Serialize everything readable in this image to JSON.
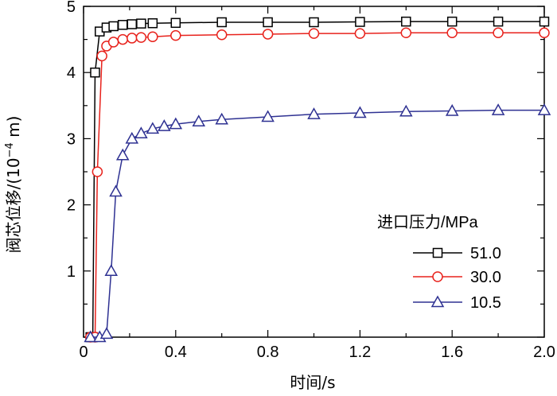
{
  "chart_data": {
    "type": "line",
    "xlabel": "时间/s",
    "ylabel_main": "阀芯位移/(10",
    "ylabel_exp": "−4",
    "ylabel_tail": " m)",
    "xlim": [
      0,
      2.0
    ],
    "ylim": [
      0,
      5
    ],
    "x_ticks": [
      "0",
      "0.4",
      "0.8",
      "1.2",
      "1.6",
      "2.0"
    ],
    "y_ticks": [
      "1",
      "2",
      "3",
      "4",
      "5"
    ],
    "grid": false,
    "legend_title": "进口压力/MPa",
    "legend_position": "right",
    "series": [
      {
        "name": "51.0",
        "color": "#000000",
        "marker": "square",
        "x": [
          0.03,
          0.04,
          0.05,
          0.07,
          0.1,
          0.13,
          0.17,
          0.21,
          0.25,
          0.3,
          0.4,
          0.6,
          0.8,
          1.0,
          1.2,
          1.4,
          1.6,
          1.8,
          2.0
        ],
        "y": [
          0.0,
          0.0,
          4.0,
          4.62,
          4.68,
          4.7,
          4.72,
          4.73,
          4.74,
          4.745,
          4.75,
          4.76,
          4.76,
          4.76,
          4.765,
          4.77,
          4.77,
          4.77,
          4.77
        ]
      },
      {
        "name": "30.0",
        "color": "#e8221c",
        "marker": "circle",
        "x": [
          0.03,
          0.05,
          0.06,
          0.08,
          0.1,
          0.13,
          0.17,
          0.21,
          0.25,
          0.3,
          0.4,
          0.6,
          0.8,
          1.0,
          1.2,
          1.4,
          1.6,
          1.8,
          2.0
        ],
        "y": [
          0.0,
          0.0,
          2.5,
          4.25,
          4.4,
          4.46,
          4.5,
          4.52,
          4.53,
          4.54,
          4.56,
          4.57,
          4.58,
          4.59,
          4.59,
          4.6,
          4.6,
          4.6,
          4.6
        ]
      },
      {
        "name": "10.5",
        "color": "#2e3192",
        "marker": "triangle",
        "x": [
          0.03,
          0.07,
          0.1,
          0.12,
          0.14,
          0.17,
          0.21,
          0.25,
          0.3,
          0.35,
          0.4,
          0.5,
          0.6,
          0.8,
          1.0,
          1.2,
          1.4,
          1.6,
          1.8,
          2.0
        ],
        "y": [
          0.0,
          0.0,
          0.05,
          1.0,
          2.2,
          2.75,
          3.0,
          3.08,
          3.15,
          3.19,
          3.22,
          3.26,
          3.29,
          3.33,
          3.37,
          3.39,
          3.41,
          3.42,
          3.43,
          3.43
        ]
      }
    ]
  }
}
